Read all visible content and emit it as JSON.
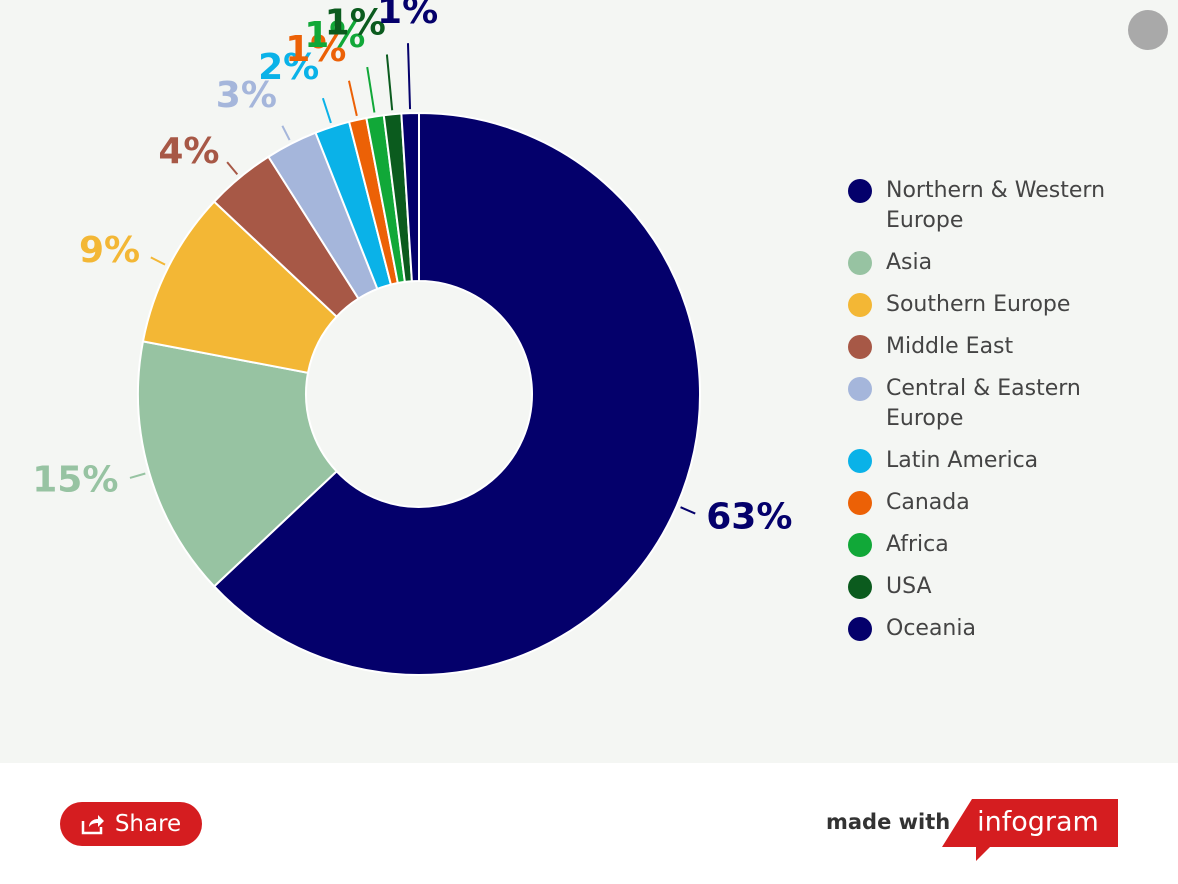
{
  "chart_data": {
    "type": "donut",
    "categories": [
      "Northern & Western Europe",
      "Asia",
      "Southern Europe",
      "Middle East",
      "Central & Eastern Europe",
      "Latin America",
      "Canada",
      "Africa",
      "USA",
      "Oceania"
    ],
    "values": [
      63,
      15,
      9,
      4,
      3,
      2,
      1,
      1,
      1,
      1
    ],
    "value_labels": [
      "63%",
      "15%",
      "9%",
      "4%",
      "3%",
      "2%",
      "1%",
      "1%",
      "1%",
      "1%"
    ],
    "colors": [
      "#04006b",
      "#97c3a2",
      "#f3b735",
      "#a75846",
      "#a5b6db",
      "#0ab2e8",
      "#ec6106",
      "#11a838",
      "#0b5b1e",
      "#04006b"
    ],
    "legend": "right"
  },
  "footer": {
    "share": "Share",
    "made_with": "made with",
    "brand": "infogram"
  }
}
